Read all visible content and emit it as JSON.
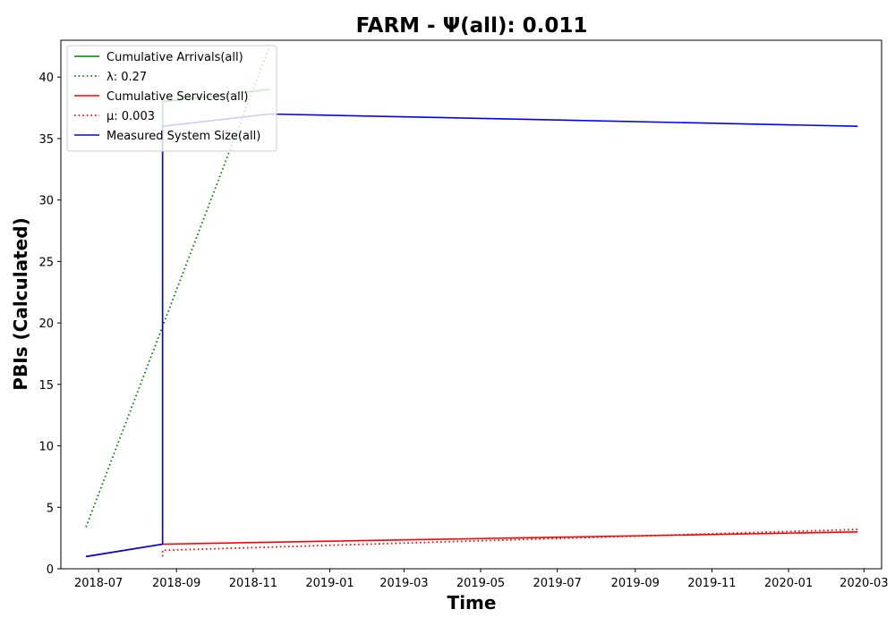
{
  "chart_data": {
    "type": "line",
    "title": "FARM -  Ψ(all): 0.011",
    "xlabel": "Time",
    "ylabel": "PBIs (Calculated)",
    "x_ticks": [
      "2018-07",
      "2018-09",
      "2018-11",
      "2019-01",
      "2019-03",
      "2019-05",
      "2019-07",
      "2019-09",
      "2019-11",
      "2020-01",
      "2020-03"
    ],
    "y_ticks": [
      0,
      5,
      10,
      15,
      20,
      25,
      30,
      35,
      40
    ],
    "xlim": [
      "2018-06-01",
      "2020-03-15"
    ],
    "ylim": [
      0,
      43
    ],
    "grid": false,
    "legend_position": "upper-left",
    "series": [
      {
        "name": "Cumulative Arrivals(all)",
        "style": "solid",
        "color": "#008000",
        "points": [
          [
            "2018-06-21",
            1
          ],
          [
            "2018-08-21",
            2
          ],
          [
            "2018-08-21",
            38
          ],
          [
            "2018-11-14",
            39
          ]
        ]
      },
      {
        "name": "λ: 0.27",
        "style": "dotted",
        "color": "#008000",
        "points": [
          [
            "2018-06-21",
            3.4
          ],
          [
            "2018-11-14",
            42.5
          ]
        ]
      },
      {
        "name": "Cumulative Services(all)",
        "style": "solid",
        "color": "#ff0000",
        "points": [
          [
            "2018-06-21",
            1
          ],
          [
            "2018-08-21",
            2
          ],
          [
            "2020-02-25",
            3
          ]
        ]
      },
      {
        "name": "μ: 0.003",
        "style": "dotted",
        "color": "#ff0000",
        "points": [
          [
            "2018-08-21",
            1.0
          ],
          [
            "2018-08-21",
            1.5
          ],
          [
            "2020-02-25",
            3.2
          ]
        ]
      },
      {
        "name": "Measured System Size(all)",
        "style": "solid",
        "color": "#0000ff",
        "points": [
          [
            "2018-06-21",
            1
          ],
          [
            "2018-08-21",
            2
          ],
          [
            "2018-08-21",
            36
          ],
          [
            "2018-11-14",
            37
          ],
          [
            "2020-02-25",
            36
          ]
        ]
      }
    ]
  }
}
